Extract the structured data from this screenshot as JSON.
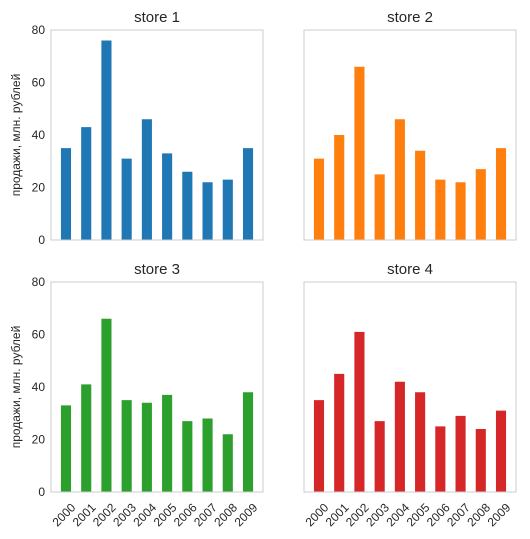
{
  "chart_data": [
    {
      "type": "bar",
      "title": "store 1",
      "ylabel": "продажи, млн. рублей",
      "xlabel": "",
      "categories": [
        "2000",
        "2001",
        "2002",
        "2003",
        "2004",
        "2005",
        "2006",
        "2007",
        "2008",
        "2009"
      ],
      "values": [
        35,
        43,
        76,
        31,
        46,
        33,
        26,
        22,
        23,
        35
      ],
      "color": "#1f77b4",
      "ylim": [
        0,
        80
      ],
      "yticks": [
        0,
        20,
        40,
        60,
        80
      ],
      "show_yticklabels": true,
      "show_xticklabels": false,
      "grid": false
    },
    {
      "type": "bar",
      "title": "store 2",
      "ylabel": "",
      "xlabel": "",
      "categories": [
        "2000",
        "2001",
        "2002",
        "2003",
        "2004",
        "2005",
        "2006",
        "2007",
        "2008",
        "2009"
      ],
      "values": [
        31,
        40,
        66,
        25,
        46,
        34,
        23,
        22,
        27,
        35
      ],
      "color": "#ff7f0e",
      "ylim": [
        0,
        80
      ],
      "yticks": [
        0,
        20,
        40,
        60,
        80
      ],
      "show_yticklabels": false,
      "show_xticklabels": false,
      "grid": false
    },
    {
      "type": "bar",
      "title": "store 3",
      "ylabel": "продажи, млн. рублей",
      "xlabel": "",
      "categories": [
        "2000",
        "2001",
        "2002",
        "2003",
        "2004",
        "2005",
        "2006",
        "2007",
        "2008",
        "2009"
      ],
      "values": [
        33,
        41,
        66,
        35,
        34,
        37,
        27,
        28,
        22,
        38
      ],
      "color": "#2ca02c",
      "ylim": [
        0,
        80
      ],
      "yticks": [
        0,
        20,
        40,
        60,
        80
      ],
      "show_yticklabels": true,
      "show_xticklabels": true,
      "grid": false
    },
    {
      "type": "bar",
      "title": "store 4",
      "ylabel": "",
      "xlabel": "",
      "categories": [
        "2000",
        "2001",
        "2002",
        "2003",
        "2004",
        "2005",
        "2006",
        "2007",
        "2008",
        "2009"
      ],
      "values": [
        35,
        45,
        61,
        27,
        42,
        38,
        25,
        29,
        24,
        31
      ],
      "color": "#d62728",
      "ylim": [
        0,
        80
      ],
      "yticks": [
        0,
        20,
        40,
        60,
        80
      ],
      "show_yticklabels": false,
      "show_xticklabels": true,
      "grid": false
    }
  ]
}
